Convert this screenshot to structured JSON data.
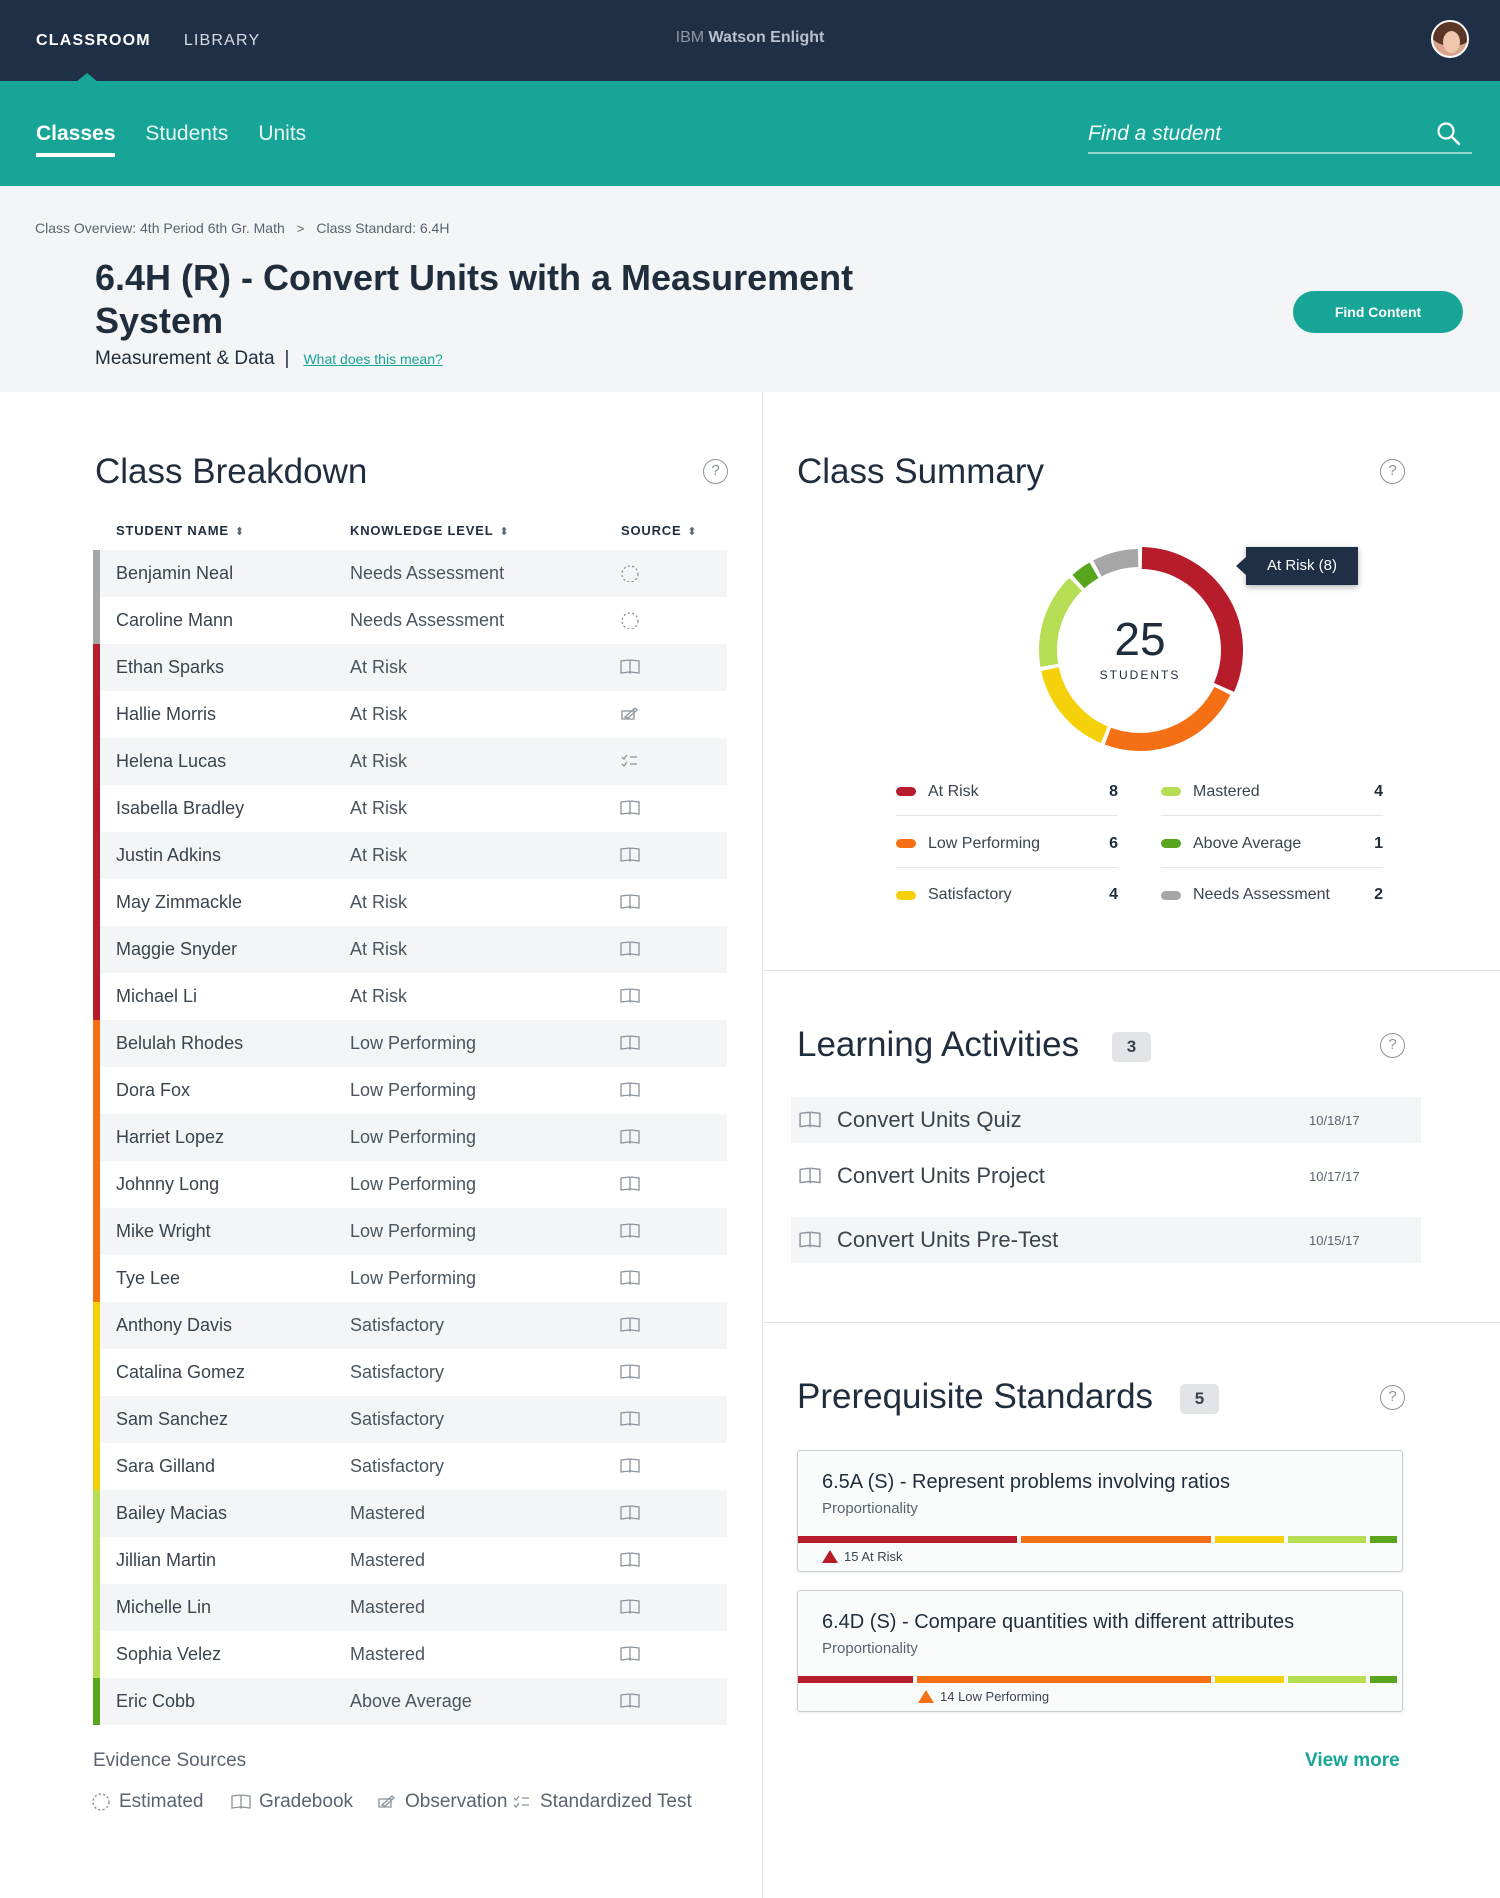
{
  "topbar": {
    "nav": [
      "CLASSROOM",
      "LIBRARY"
    ],
    "brand_prefix": "IBM",
    "brand_name": "Watson Enlight"
  },
  "subnav": {
    "tabs": [
      "Classes",
      "Students",
      "Units"
    ],
    "search_placeholder": "Find a student"
  },
  "header": {
    "breadcrumb": [
      "Class Overview: 4th Period 6th Gr. Math",
      "Class Standard: 6.4H"
    ],
    "title": "6.4H (R) - Convert Units with a Measurement System",
    "category": "Measurement & Data",
    "help_link": "What does this mean?",
    "find_content_label": "Find Content"
  },
  "breakdown": {
    "title": "Class Breakdown",
    "columns": [
      "STUDENT NAME",
      "KNOWLEDGE LEVEL",
      "SOURCE"
    ],
    "rows": [
      {
        "name": "Benjamin Neal",
        "level": "Needs Assessment",
        "source": "estimated",
        "color": "#a6a6a6"
      },
      {
        "name": "Caroline Mann",
        "level": "Needs Assessment",
        "source": "estimated",
        "color": "#a6a6a6"
      },
      {
        "name": "Ethan Sparks",
        "level": "At Risk",
        "source": "gradebook",
        "color": "#b71c2b"
      },
      {
        "name": "Hallie Morris",
        "level": "At Risk",
        "source": "observation",
        "color": "#b71c2b"
      },
      {
        "name": "Helena Lucas",
        "level": "At Risk",
        "source": "standardized-test",
        "color": "#b71c2b"
      },
      {
        "name": "Isabella Bradley",
        "level": "At Risk",
        "source": "gradebook",
        "color": "#b71c2b"
      },
      {
        "name": "Justin Adkins",
        "level": "At Risk",
        "source": "gradebook",
        "color": "#b71c2b"
      },
      {
        "name": "May Zimmackle",
        "level": "At Risk",
        "source": "gradebook",
        "color": "#b71c2b"
      },
      {
        "name": "Maggie Snyder",
        "level": "At Risk",
        "source": "gradebook",
        "color": "#b71c2b"
      },
      {
        "name": "Michael Li",
        "level": "At Risk",
        "source": "gradebook",
        "color": "#b71c2b"
      },
      {
        "name": "Belulah Rhodes",
        "level": "Low Performing",
        "source": "gradebook",
        "color": "#f57014"
      },
      {
        "name": "Dora Fox",
        "level": "Low Performing",
        "source": "gradebook",
        "color": "#f57014"
      },
      {
        "name": "Harriet Lopez",
        "level": "Low Performing",
        "source": "gradebook",
        "color": "#f57014"
      },
      {
        "name": "Johnny Long",
        "level": "Low Performing",
        "source": "gradebook",
        "color": "#f57014"
      },
      {
        "name": "Mike Wright",
        "level": "Low Performing",
        "source": "gradebook",
        "color": "#f57014"
      },
      {
        "name": "Tye Lee",
        "level": "Low Performing",
        "source": "gradebook",
        "color": "#f57014"
      },
      {
        "name": "Anthony Davis",
        "level": "Satisfactory",
        "source": "gradebook",
        "color": "#f5d10c"
      },
      {
        "name": "Catalina Gomez",
        "level": "Satisfactory",
        "source": "gradebook",
        "color": "#f5d10c"
      },
      {
        "name": "Sam Sanchez",
        "level": "Satisfactory",
        "source": "gradebook",
        "color": "#f5d10c"
      },
      {
        "name": "Sara Gilland",
        "level": "Satisfactory",
        "source": "gradebook",
        "color": "#f5d10c"
      },
      {
        "name": "Bailey Macias",
        "level": "Mastered",
        "source": "gradebook",
        "color": "#b6de55"
      },
      {
        "name": "Jillian Martin",
        "level": "Mastered",
        "source": "gradebook",
        "color": "#b6de55"
      },
      {
        "name": "Michelle Lin",
        "level": "Mastered",
        "source": "gradebook",
        "color": "#b6de55"
      },
      {
        "name": "Sophia Velez",
        "level": "Mastered",
        "source": "gradebook",
        "color": "#b6de55"
      },
      {
        "name": "Eric Cobb",
        "level": "Above Average",
        "source": "gradebook",
        "color": "#5aa51e"
      }
    ],
    "evidence_title": "Evidence Sources",
    "evidence_sources": [
      "Estimated",
      "Gradebook",
      "Observation",
      "Standardized Test"
    ]
  },
  "summary": {
    "title": "Class Summary",
    "total": "25",
    "total_label": "STUDENTS",
    "tooltip": "At Risk (8)",
    "segments": [
      {
        "label": "At Risk",
        "count": 8,
        "color": "#b71c2b"
      },
      {
        "label": "Low Performing",
        "count": 6,
        "color": "#f57014"
      },
      {
        "label": "Satisfactory",
        "count": 4,
        "color": "#f5d10c"
      },
      {
        "label": "Mastered",
        "count": 4,
        "color": "#b6de55"
      },
      {
        "label": "Above Average",
        "count": 1,
        "color": "#5aa51e"
      },
      {
        "label": "Needs Assessment",
        "count": 2,
        "color": "#a6a6a6"
      }
    ]
  },
  "activities": {
    "title": "Learning Activities",
    "count": "3",
    "items": [
      {
        "name": "Convert Units Quiz",
        "date": "10/18/17"
      },
      {
        "name": "Convert Units Project",
        "date": "10/17/17"
      },
      {
        "name": "Convert Units Pre-Test",
        "date": "10/15/17"
      }
    ]
  },
  "prereqs": {
    "title": "Prerequisite Standards",
    "count": "5",
    "cards": [
      {
        "title": "6.5A (S) - Represent problems involving ratios",
        "subtitle": "Proportionality",
        "note": "15 At Risk",
        "note_color": "#b71c2b"
      },
      {
        "title": "6.4D (S) - Compare quantities with different attributes",
        "subtitle": "Proportionality",
        "note": "14 Low Performing",
        "note_color": "#f57014"
      }
    ],
    "view_more": "View more"
  },
  "help_symbol": "?",
  "breadcrumb_sep": ">"
}
